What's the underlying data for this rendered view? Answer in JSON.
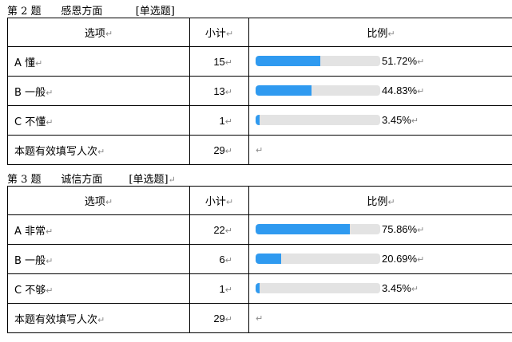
{
  "questions": [
    {
      "label": "第 2 题",
      "topic": "感恩方面",
      "type": "[单选题]",
      "headers": {
        "option": "选项",
        "count": "小计",
        "ratio": "比例"
      },
      "options": [
        {
          "label": "A 懂",
          "count": "15",
          "percent": "51.72%",
          "fraction": 0.5172
        },
        {
          "label": "B 一般",
          "count": "13",
          "percent": "44.83%",
          "fraction": 0.4483
        },
        {
          "label": "C 不懂",
          "count": "1",
          "percent": "3.45%",
          "fraction": 0.0345
        }
      ],
      "total": {
        "label": "本题有效填写人次",
        "count": "29"
      }
    },
    {
      "label": "第 3 题",
      "topic": "诚信方面",
      "type": "[单选题]",
      "headers": {
        "option": "选项",
        "count": "小计",
        "ratio": "比例"
      },
      "options": [
        {
          "label": "A 非常",
          "count": "22",
          "percent": "75.86%",
          "fraction": 0.7586
        },
        {
          "label": "B 一般",
          "count": "6",
          "percent": "20.69%",
          "fraction": 0.2069
        },
        {
          "label": "C 不够",
          "count": "1",
          "percent": "3.45%",
          "fraction": 0.0345
        }
      ],
      "total": {
        "label": "本题有效填写人次",
        "count": "29"
      }
    }
  ],
  "paragraph_mark": "↵",
  "colors": {
    "bar_fill": "#2f9af0",
    "bar_track": "#e3e3e3",
    "border": "#000000"
  }
}
